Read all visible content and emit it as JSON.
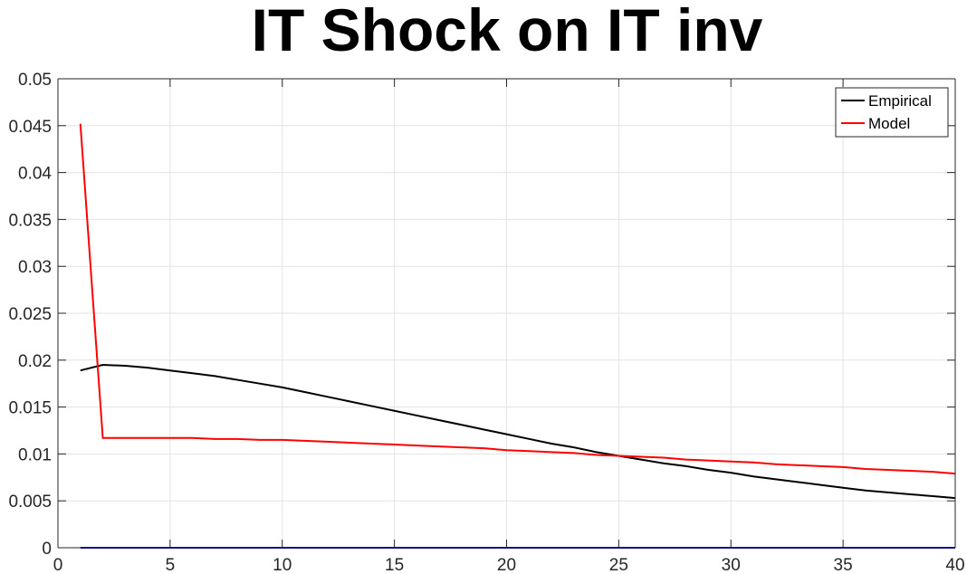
{
  "chart_data": {
    "type": "line",
    "title": "IT Shock on IT inv",
    "xlabel": "",
    "ylabel": "",
    "xlim": [
      0,
      40
    ],
    "ylim": [
      0,
      0.05
    ],
    "grid": true,
    "legend_position": "top-right",
    "x_ticks": [
      "0",
      "5",
      "10",
      "15",
      "20",
      "25",
      "30",
      "35",
      "40"
    ],
    "y_ticks": [
      "0",
      "0.005",
      "0.01",
      "0.015",
      "0.02",
      "0.025",
      "0.03",
      "0.035",
      "0.04",
      "0.045",
      "0.05"
    ],
    "x_tick_values": [
      0,
      5,
      10,
      15,
      20,
      25,
      30,
      35,
      40
    ],
    "y_tick_values": [
      0,
      0.005,
      0.01,
      0.015,
      0.02,
      0.025,
      0.03,
      0.035,
      0.04,
      0.045,
      0.05
    ],
    "series": [
      {
        "name": "Empirical",
        "color": "#000000",
        "in_legend": true,
        "x": [
          1,
          2,
          3,
          4,
          5,
          6,
          7,
          8,
          9,
          10,
          11,
          12,
          13,
          14,
          15,
          16,
          17,
          18,
          19,
          20,
          21,
          22,
          23,
          24,
          25,
          26,
          27,
          28,
          29,
          30,
          31,
          32,
          33,
          34,
          35,
          36,
          37,
          38,
          39,
          40
        ],
        "y": [
          0.0189,
          0.0195,
          0.0194,
          0.0192,
          0.0189,
          0.0186,
          0.0183,
          0.0179,
          0.0175,
          0.0171,
          0.0166,
          0.0161,
          0.0156,
          0.0151,
          0.0146,
          0.0141,
          0.0136,
          0.0131,
          0.0126,
          0.0121,
          0.0116,
          0.0111,
          0.0107,
          0.0102,
          0.0098,
          0.0094,
          0.009,
          0.0087,
          0.0083,
          0.008,
          0.0076,
          0.0073,
          0.007,
          0.0067,
          0.0064,
          0.0061,
          0.0059,
          0.0057,
          0.0055,
          0.0053
        ]
      },
      {
        "name": "Model",
        "color": "#ff0000",
        "in_legend": true,
        "x": [
          1,
          2,
          3,
          4,
          5,
          6,
          7,
          8,
          9,
          10,
          11,
          12,
          13,
          14,
          15,
          16,
          17,
          18,
          19,
          20,
          21,
          22,
          23,
          24,
          25,
          26,
          27,
          28,
          29,
          30,
          31,
          32,
          33,
          34,
          35,
          36,
          37,
          38,
          39,
          40
        ],
        "y": [
          0.0452,
          0.0117,
          0.0117,
          0.0117,
          0.0117,
          0.0117,
          0.0116,
          0.0116,
          0.0115,
          0.0115,
          0.0114,
          0.0113,
          0.0112,
          0.0111,
          0.011,
          0.0109,
          0.0108,
          0.0107,
          0.0106,
          0.0104,
          0.0103,
          0.0102,
          0.0101,
          0.0099,
          0.0098,
          0.0097,
          0.0096,
          0.0094,
          0.0093,
          0.0092,
          0.0091,
          0.0089,
          0.0088,
          0.0087,
          0.0086,
          0.0084,
          0.0083,
          0.0082,
          0.0081,
          0.0079
        ]
      },
      {
        "color": "#0000ff",
        "in_legend": false,
        "x": [
          1,
          40
        ],
        "y": [
          0,
          0
        ]
      }
    ]
  }
}
